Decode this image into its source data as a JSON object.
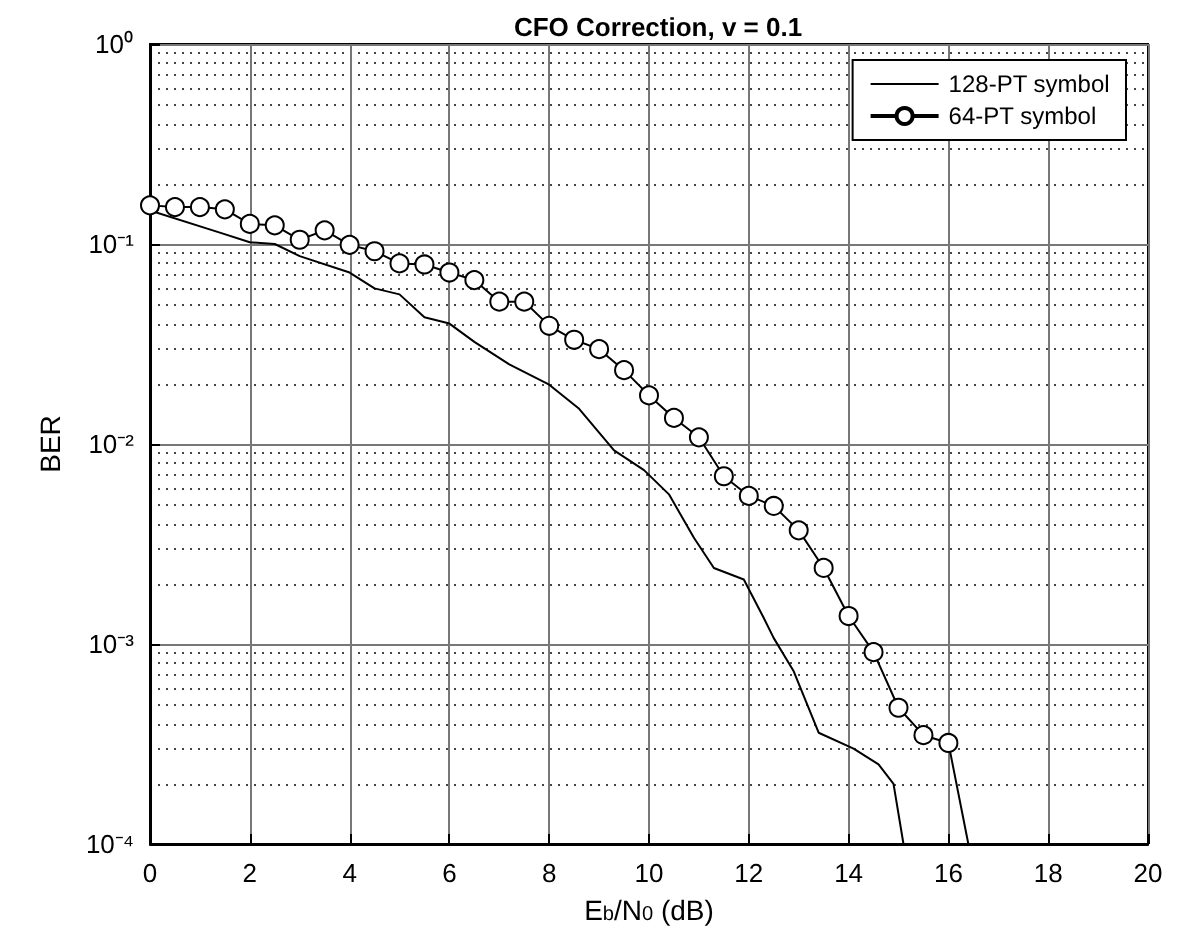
{
  "chart_data": {
    "type": "line",
    "title": "CFO Correction, v = 0.1",
    "xlabel": "E$_{b}$/N$_{0}$ (dB)",
    "ylabel": "BER",
    "log": "y",
    "grid": true,
    "legend": "top right",
    "line_style": "solid",
    "xlim": [
      0,
      20
    ],
    "xticks": [
      0,
      2,
      4,
      6,
      8,
      10,
      12,
      14,
      16,
      18,
      20
    ],
    "ylim": [
      0.0001,
      1
    ],
    "yticks": [
      {
        "value": 0.0001,
        "label": "10⁻⁴"
      },
      {
        "value": 0.001,
        "label": "10⁻³"
      },
      {
        "value": 0.01,
        "label": "10⁻²"
      },
      {
        "value": 0.1,
        "label": "10⁻¹"
      },
      {
        "value": 1,
        "label": "10⁰"
      }
    ],
    "series": [
      {
        "name": "128-PT symbol",
        "color": "#000000",
        "marker": "none",
        "x": [
          0,
          1.4,
          2,
          2.5,
          3,
          4,
          4.5,
          5,
          5.5,
          6,
          6.5,
          7.2,
          8,
          8.6,
          9.3,
          9.9,
          10.4,
          10.9,
          11.3,
          11.9,
          12.3,
          12.5,
          12.9,
          13.4,
          14.1,
          14.6,
          14.9,
          15.1
        ],
        "values": [
          0.147,
          0.114,
          0.102,
          0.1,
          0.087,
          0.072,
          0.06,
          0.056,
          0.043,
          0.04,
          0.0324,
          0.025,
          0.0198,
          0.015,
          0.0093,
          0.0074,
          0.0056,
          0.0034,
          0.0024,
          0.0021,
          0.00135,
          0.00107,
          0.00073,
          0.00036,
          0.0003,
          0.00025,
          0.0002,
          0.0001
        ]
      },
      {
        "name": "64-PT symbol",
        "color": "#000000",
        "marker": "circle",
        "x": [
          0,
          0.5,
          1,
          1.5,
          2,
          2.5,
          3,
          3.5,
          4,
          4.5,
          5,
          5.5,
          6,
          6.5,
          7,
          7.5,
          8,
          8.5,
          9,
          9.5,
          10,
          10.5,
          11,
          11.5,
          12,
          12.5,
          13,
          13.5,
          14,
          14.5,
          15,
          15.5,
          16,
          16.4
        ],
        "values": [
          0.156,
          0.153,
          0.153,
          0.149,
          0.126,
          0.124,
          0.105,
          0.117,
          0.099,
          0.092,
          0.08,
          0.079,
          0.072,
          0.066,
          0.0515,
          0.0515,
          0.039,
          0.0332,
          0.0298,
          0.0234,
          0.0175,
          0.0135,
          0.0108,
          0.0069,
          0.0055,
          0.0049,
          0.0037,
          0.0024,
          0.00138,
          0.00091,
          0.00048,
          0.00035,
          0.00032,
          0.0001
        ]
      }
    ]
  }
}
